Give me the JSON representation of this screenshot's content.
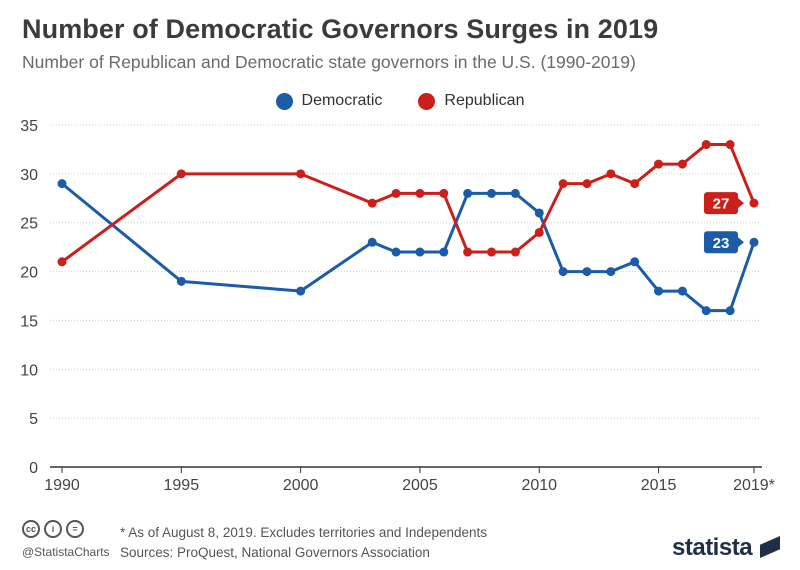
{
  "header": {
    "title": "Number of Democratic Governors Surges in 2019",
    "subtitle": "Number of Republican and Democratic state governors in the U.S. (1990-2019)"
  },
  "colors": {
    "democratic": "#1a5ca8",
    "republican": "#cc1f1a",
    "grid": "#cccccc",
    "axis": "#333333"
  },
  "chart_data": {
    "type": "line",
    "x": [
      1990,
      1995,
      2000,
      2003,
      2004,
      2005,
      2006,
      2007,
      2008,
      2009,
      2010,
      2011,
      2012,
      2013,
      2014,
      2015,
      2016,
      2017,
      2018,
      2019
    ],
    "series": [
      {
        "name": "Democratic",
        "color": "#1a5ca8",
        "values": [
          29,
          19,
          18,
          23,
          22,
          22,
          22,
          28,
          28,
          28,
          26,
          20,
          20,
          20,
          21,
          18,
          18,
          16,
          16,
          23
        ],
        "end_label": "23"
      },
      {
        "name": "Republican",
        "color": "#cc1f1a",
        "values": [
          21,
          30,
          30,
          27,
          28,
          28,
          28,
          22,
          22,
          22,
          24,
          29,
          29,
          30,
          29,
          31,
          31,
          33,
          33,
          27
        ],
        "end_label": "27"
      }
    ],
    "xticks": [
      1990,
      1995,
      2000,
      2005,
      2010,
      2015,
      2019
    ],
    "xtick_labels": [
      "1990",
      "1995",
      "2000",
      "2005",
      "2010",
      "2015",
      "2019*"
    ],
    "yticks": [
      0,
      5,
      10,
      15,
      20,
      25,
      30,
      35
    ],
    "ylim": [
      0,
      35
    ],
    "xlim": [
      1990,
      2019
    ],
    "grid": true,
    "legend_position": "top-center",
    "xlabel": "",
    "ylabel": ""
  },
  "footer": {
    "note": "* As of August 8, 2019. Excludes territories and Independents",
    "sources": "Sources: ProQuest, National Governors Association",
    "handle": "@StatistaCharts",
    "brand": "statista",
    "license_icons": [
      "cc",
      "i",
      "="
    ]
  }
}
